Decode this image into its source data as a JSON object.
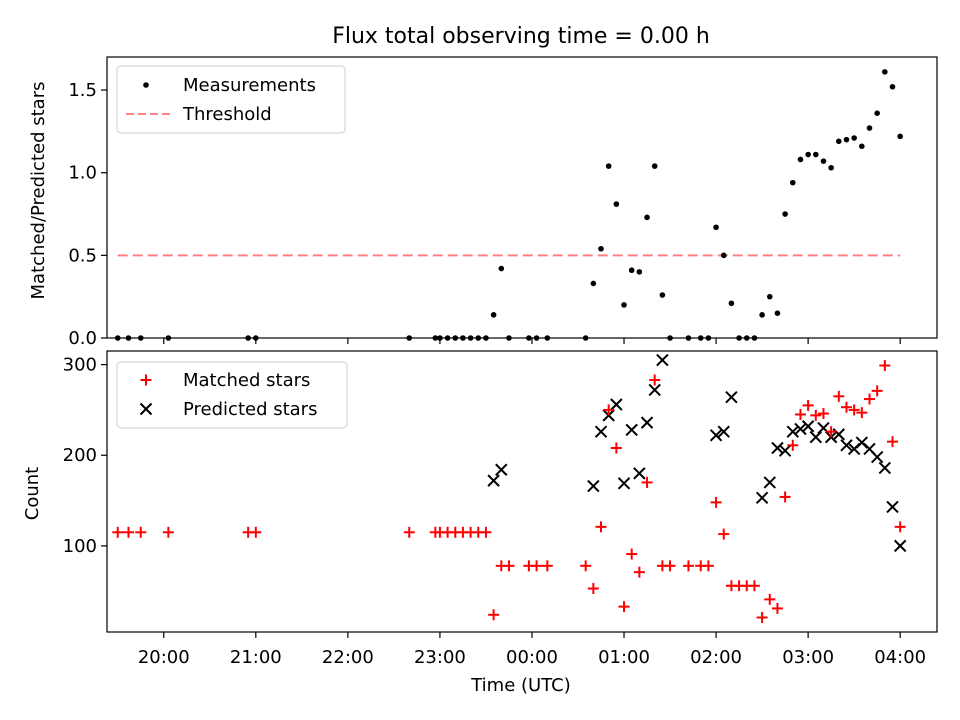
{
  "title": "Flux total observing time = 0.00 h",
  "colors": {
    "measurement": "#000000",
    "threshold": "#ff8080",
    "matched": "#ff0000",
    "predicted": "#000000"
  },
  "chart_data": [
    {
      "type": "scatter",
      "ylabel": "Matched/Predicted stars",
      "xlabel": "",
      "ylim": [
        0,
        1.7
      ],
      "xlim": [
        "19:23",
        "04:24"
      ],
      "yticks": [
        0.0,
        0.5,
        1.0,
        1.5
      ],
      "ytick_labels": [
        "0.0",
        "0.5",
        "1.0",
        "1.5"
      ],
      "legend_position": "top-left",
      "legend": [
        "Measurements",
        "Threshold"
      ],
      "threshold": {
        "name": "Threshold",
        "value": 0.5,
        "x_range": [
          "19:30",
          "04:00"
        ]
      },
      "series": [
        {
          "name": "Measurements",
          "points": [
            [
              "19:30",
              0.0
            ],
            [
              "19:37",
              0.0
            ],
            [
              "19:45",
              0.0
            ],
            [
              "20:03",
              0.0
            ],
            [
              "20:55",
              0.0
            ],
            [
              "21:00",
              0.0
            ],
            [
              "22:40",
              0.0
            ],
            [
              "22:57",
              0.0
            ],
            [
              "23:00",
              0.0
            ],
            [
              "23:05",
              0.0
            ],
            [
              "23:10",
              0.0
            ],
            [
              "23:15",
              0.0
            ],
            [
              "23:20",
              0.0
            ],
            [
              "23:25",
              0.0
            ],
            [
              "23:30",
              0.0
            ],
            [
              "23:35",
              0.14
            ],
            [
              "23:40",
              0.42
            ],
            [
              "23:45",
              0.0
            ],
            [
              "23:58",
              0.0
            ],
            [
              "00:03",
              0.0
            ],
            [
              "00:10",
              0.0
            ],
            [
              "00:35",
              0.0
            ],
            [
              "00:40",
              0.33
            ],
            [
              "00:45",
              0.54
            ],
            [
              "00:50",
              1.04
            ],
            [
              "00:55",
              0.81
            ],
            [
              "01:00",
              0.2
            ],
            [
              "01:05",
              0.41
            ],
            [
              "01:10",
              0.4
            ],
            [
              "01:15",
              0.73
            ],
            [
              "01:20",
              1.04
            ],
            [
              "01:25",
              0.26
            ],
            [
              "01:30",
              0.0
            ],
            [
              "01:42",
              0.0
            ],
            [
              "01:50",
              0.0
            ],
            [
              "01:55",
              0.0
            ],
            [
              "02:00",
              0.67
            ],
            [
              "02:05",
              0.5
            ],
            [
              "02:10",
              0.21
            ],
            [
              "02:15",
              0.0
            ],
            [
              "02:20",
              0.0
            ],
            [
              "02:25",
              0.0
            ],
            [
              "02:30",
              0.14
            ],
            [
              "02:35",
              0.25
            ],
            [
              "02:40",
              0.15
            ],
            [
              "02:45",
              0.75
            ],
            [
              "02:50",
              0.94
            ],
            [
              "02:55",
              1.08
            ],
            [
              "03:00",
              1.11
            ],
            [
              "03:05",
              1.11
            ],
            [
              "03:10",
              1.07
            ],
            [
              "03:15",
              1.03
            ],
            [
              "03:20",
              1.19
            ],
            [
              "03:25",
              1.2
            ],
            [
              "03:30",
              1.21
            ],
            [
              "03:35",
              1.16
            ],
            [
              "03:40",
              1.27
            ],
            [
              "03:45",
              1.36
            ],
            [
              "03:50",
              1.61
            ],
            [
              "03:55",
              1.52
            ],
            [
              "04:00",
              1.22
            ]
          ]
        }
      ]
    },
    {
      "type": "scatter",
      "ylabel": "Count",
      "xlabel": "Time (UTC)",
      "ylim": [
        5,
        315
      ],
      "xlim": [
        "19:23",
        "04:24"
      ],
      "yticks": [
        100,
        200,
        300
      ],
      "ytick_labels": [
        "100",
        "200",
        "300"
      ],
      "xticks": [
        "20:00",
        "21:00",
        "22:00",
        "23:00",
        "00:00",
        "01:00",
        "02:00",
        "03:00",
        "04:00"
      ],
      "xtick_labels": [
        "20:00",
        "21:00",
        "22:00",
        "23:00",
        "00:00",
        "01:00",
        "02:00",
        "03:00",
        "04:00"
      ],
      "legend_position": "top-left",
      "legend": [
        "Matched stars",
        "Predicted stars"
      ],
      "series": [
        {
          "name": "Matched stars",
          "marker": "plus",
          "points": [
            [
              "19:30",
              115
            ],
            [
              "19:37",
              115
            ],
            [
              "19:45",
              115
            ],
            [
              "20:03",
              115
            ],
            [
              "20:55",
              115
            ],
            [
              "21:00",
              115
            ],
            [
              "22:40",
              115
            ],
            [
              "22:57",
              115
            ],
            [
              "23:00",
              115
            ],
            [
              "23:05",
              115
            ],
            [
              "23:10",
              115
            ],
            [
              "23:15",
              115
            ],
            [
              "23:20",
              115
            ],
            [
              "23:25",
              115
            ],
            [
              "23:30",
              115
            ],
            [
              "23:35",
              24
            ],
            [
              "23:40",
              78
            ],
            [
              "23:45",
              78
            ],
            [
              "23:58",
              78
            ],
            [
              "00:03",
              78
            ],
            [
              "00:10",
              78
            ],
            [
              "00:35",
              78
            ],
            [
              "00:40",
              53
            ],
            [
              "00:45",
              121
            ],
            [
              "00:50",
              250
            ],
            [
              "00:55",
              208
            ],
            [
              "01:00",
              33
            ],
            [
              "01:05",
              91
            ],
            [
              "01:10",
              71
            ],
            [
              "01:15",
              170
            ],
            [
              "01:20",
              283
            ],
            [
              "01:25",
              78
            ],
            [
              "01:30",
              78
            ],
            [
              "01:42",
              78
            ],
            [
              "01:50",
              78
            ],
            [
              "01:55",
              78
            ],
            [
              "02:00",
              148
            ],
            [
              "02:05",
              113
            ],
            [
              "02:10",
              56
            ],
            [
              "02:15",
              56
            ],
            [
              "02:20",
              56
            ],
            [
              "02:25",
              56
            ],
            [
              "02:30",
              21
            ],
            [
              "02:35",
              41
            ],
            [
              "02:40",
              31
            ],
            [
              "02:45",
              154
            ],
            [
              "02:50",
              211
            ],
            [
              "02:55",
              245
            ],
            [
              "03:00",
              255
            ],
            [
              "03:05",
              244
            ],
            [
              "03:10",
              246
            ],
            [
              "03:15",
              226
            ],
            [
              "03:20",
              265
            ],
            [
              "03:25",
              253
            ],
            [
              "03:30",
              250
            ],
            [
              "03:35",
              247
            ],
            [
              "03:40",
              262
            ],
            [
              "03:45",
              271
            ],
            [
              "03:50",
              299
            ],
            [
              "03:55",
              215
            ],
            [
              "04:00",
              121
            ]
          ]
        },
        {
          "name": "Predicted stars",
          "marker": "x",
          "points": [
            [
              "23:35",
              172
            ],
            [
              "23:40",
              184
            ],
            [
              "00:40",
              166
            ],
            [
              "00:45",
              226
            ],
            [
              "00:50",
              244
            ],
            [
              "00:55",
              256
            ],
            [
              "01:00",
              169
            ],
            [
              "01:05",
              228
            ],
            [
              "01:10",
              180
            ],
            [
              "01:15",
              236
            ],
            [
              "01:20",
              272
            ],
            [
              "01:25",
              305
            ],
            [
              "02:00",
              222
            ],
            [
              "02:05",
              226
            ],
            [
              "02:10",
              264
            ],
            [
              "02:30",
              153
            ],
            [
              "02:35",
              170
            ],
            [
              "02:40",
              208
            ],
            [
              "02:45",
              205
            ],
            [
              "02:50",
              226
            ],
            [
              "02:55",
              229
            ],
            [
              "03:00",
              232
            ],
            [
              "03:05",
              220
            ],
            [
              "03:10",
              230
            ],
            [
              "03:15",
              220
            ],
            [
              "03:20",
              223
            ],
            [
              "03:25",
              211
            ],
            [
              "03:30",
              207
            ],
            [
              "03:35",
              214
            ],
            [
              "03:40",
              207
            ],
            [
              "03:45",
              198
            ],
            [
              "03:50",
              186
            ],
            [
              "03:55",
              143
            ],
            [
              "04:00",
              100
            ]
          ]
        }
      ]
    }
  ]
}
